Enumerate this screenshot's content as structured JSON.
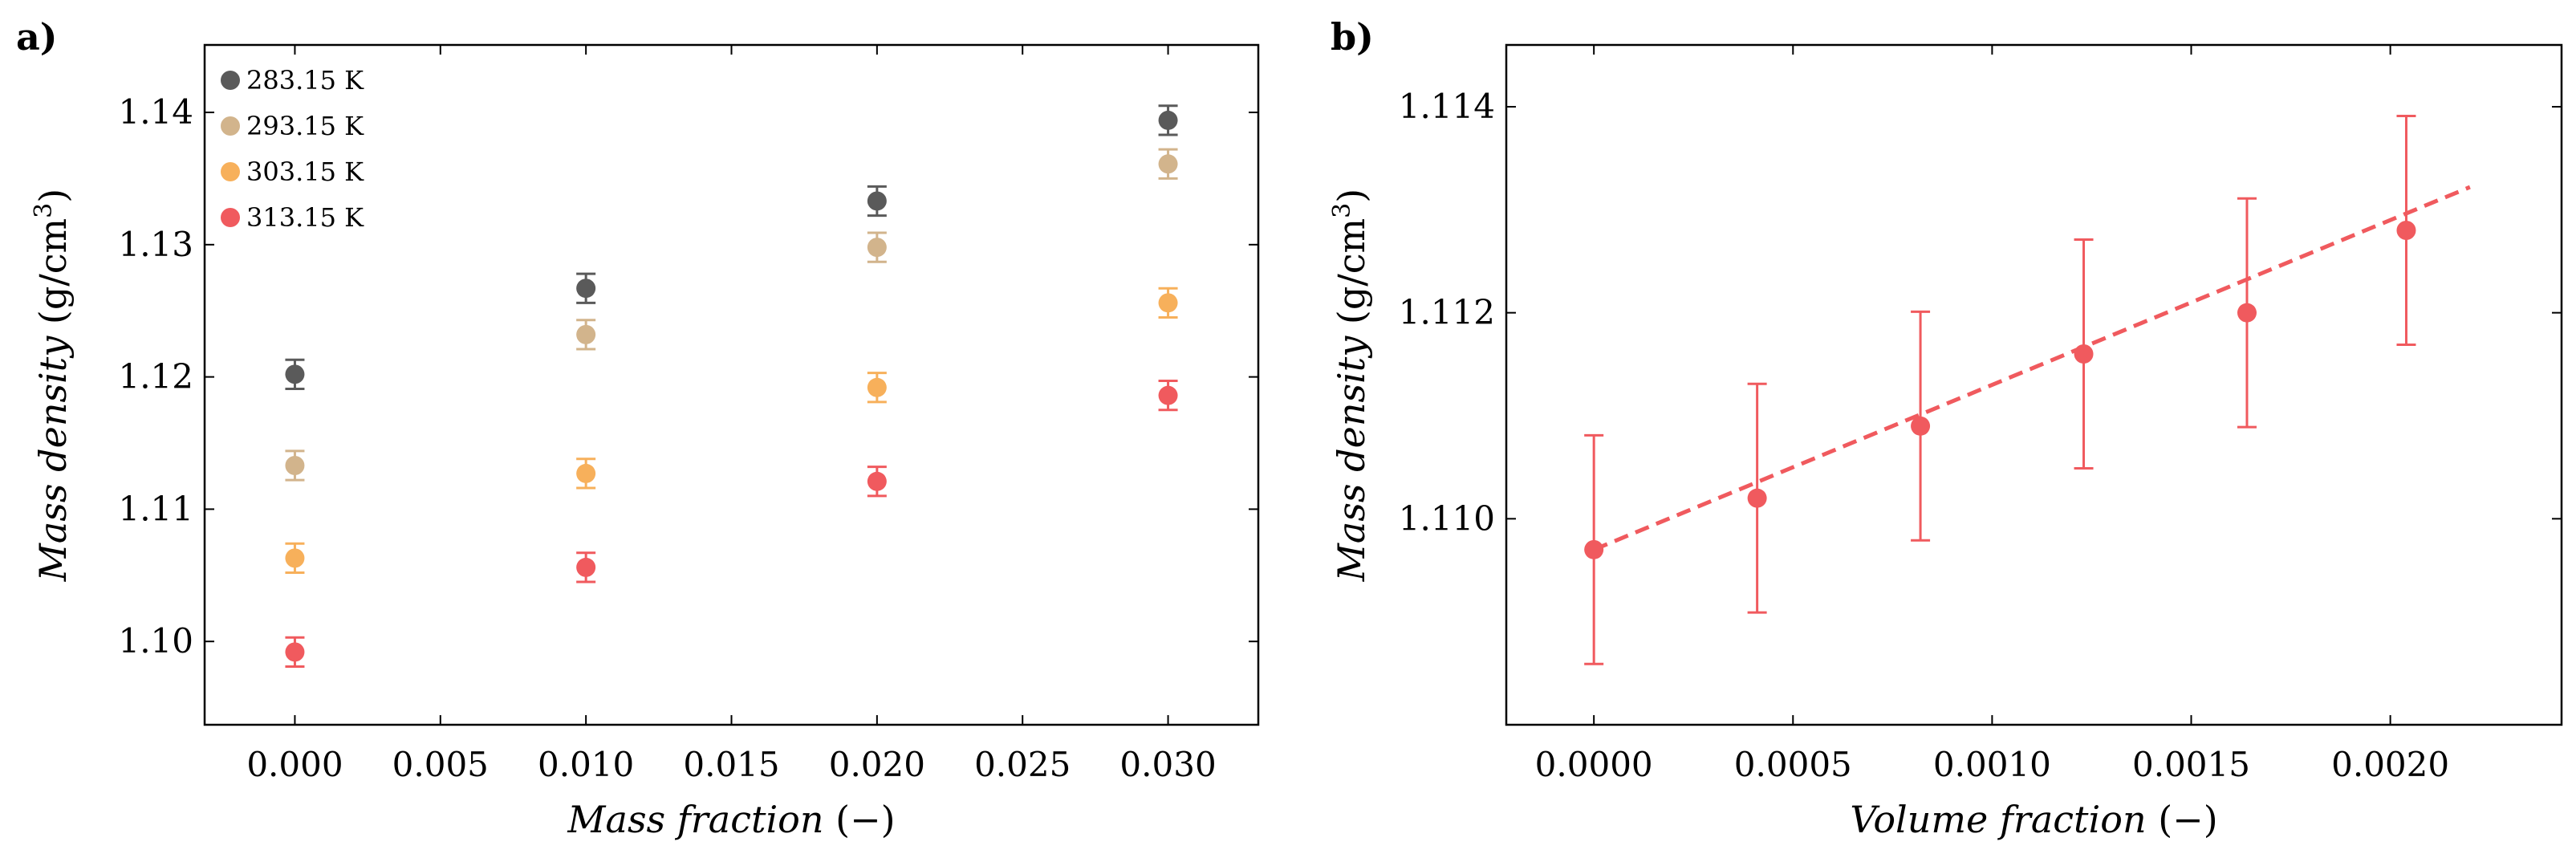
{
  "chart_data": [
    {
      "panel": "a)",
      "type": "scatter",
      "xlabel": "Mass fraction (−)",
      "ylabel": "Mass density (g/cm³)",
      "xlim": [
        -0.0031,
        0.0331
      ],
      "ylim": [
        1.0937,
        1.1451
      ],
      "xticks": [
        0.0,
        0.005,
        0.01,
        0.015,
        0.02,
        0.025,
        0.03
      ],
      "xtick_labels": [
        "0.000",
        "0.005",
        "0.010",
        "0.015",
        "0.020",
        "0.025",
        "0.030"
      ],
      "yticks": [
        1.1,
        1.11,
        1.12,
        1.13,
        1.14
      ],
      "ytick_labels": [
        "1.10",
        "1.11",
        "1.12",
        "1.13",
        "1.14"
      ],
      "legend_position": "top-left",
      "series": [
        {
          "name": "283.15 K",
          "color": "#5a5a5a",
          "x": [
            0.0,
            0.01,
            0.02,
            0.03
          ],
          "y": [
            1.1202,
            1.1267,
            1.1333,
            1.1394
          ],
          "err": [
            0.0011,
            0.0011,
            0.0011,
            0.0011
          ]
        },
        {
          "name": "293.15 K",
          "color": "#d2b48c",
          "x": [
            0.0,
            0.01,
            0.02,
            0.03
          ],
          "y": [
            1.1133,
            1.1232,
            1.1298,
            1.1361
          ],
          "err": [
            0.0011,
            0.0011,
            0.0011,
            0.0011
          ]
        },
        {
          "name": "303.15 K",
          "color": "#f7b05b",
          "x": [
            0.0,
            0.01,
            0.02,
            0.03
          ],
          "y": [
            1.1063,
            1.1127,
            1.1192,
            1.1256
          ],
          "err": [
            0.0011,
            0.0011,
            0.0011,
            0.0011
          ]
        },
        {
          "name": "313.15 K",
          "color": "#f05a5e",
          "x": [
            0.0,
            0.01,
            0.02,
            0.03
          ],
          "y": [
            1.0992,
            1.1056,
            1.1121,
            1.1186
          ],
          "err": [
            0.0011,
            0.0011,
            0.0011,
            0.0011
          ]
        }
      ]
    },
    {
      "panel": "b)",
      "type": "scatter",
      "xlabel": "Volume fraction (−)",
      "ylabel": "Mass density (g/cm³)",
      "xlim": [
        -0.00022,
        0.00243
      ],
      "ylim": [
        1.108,
        1.1146
      ],
      "xticks": [
        0.0,
        0.0005,
        0.001,
        0.0015,
        0.002
      ],
      "xtick_labels": [
        "0.0000",
        "0.0005",
        "0.0010",
        "0.0015",
        "0.0020"
      ],
      "yticks": [
        1.11,
        1.112,
        1.114
      ],
      "ytick_labels": [
        "1.110",
        "1.112",
        "1.114"
      ],
      "series": [
        {
          "name": "313.15 K",
          "color": "#f05a5e",
          "x": [
            0.0,
            0.00041,
            0.00082,
            0.00123,
            0.00164,
            0.00204
          ],
          "y": [
            1.1097,
            1.1102,
            1.1109,
            1.1116,
            1.112,
            1.1128
          ],
          "err": [
            0.00111,
            0.00111,
            0.00111,
            0.00111,
            0.00111,
            0.00111
          ]
        }
      ],
      "fit_line": {
        "style": "dashed",
        "color": "#f05a5e",
        "x": [
          0.0,
          0.0022
        ],
        "y": [
          1.1097,
          1.11322
        ]
      }
    }
  ]
}
